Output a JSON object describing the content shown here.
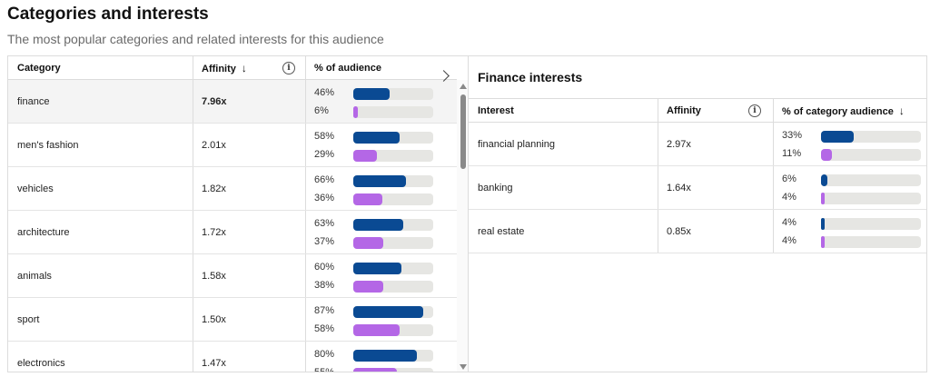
{
  "page": {
    "title": "Categories and interests",
    "subtitle": "The most popular categories and related interests for this audience"
  },
  "colors": {
    "primary_bar": "#0a4a93",
    "secondary_bar": "#b467e6",
    "track": "#e6e6e3"
  },
  "left_table": {
    "headers": {
      "category": "Category",
      "affinity": "Affinity",
      "affinity_sort_icon": "arrow-down-icon",
      "affinity_info_icon": "info-icon",
      "percent": "% of audience"
    },
    "rows": [
      {
        "category": "finance",
        "affinity": "7.96x",
        "p1_label": "46%",
        "p1": 46,
        "p2_label": "6%",
        "p2": 6,
        "selected": true
      },
      {
        "category": "men's fashion",
        "affinity": "2.01x",
        "p1_label": "58%",
        "p1": 58,
        "p2_label": "29%",
        "p2": 29
      },
      {
        "category": "vehicles",
        "affinity": "1.82x",
        "p1_label": "66%",
        "p1": 66,
        "p2_label": "36%",
        "p2": 36
      },
      {
        "category": "architecture",
        "affinity": "1.72x",
        "p1_label": "63%",
        "p1": 63,
        "p2_label": "37%",
        "p2": 37
      },
      {
        "category": "animals",
        "affinity": "1.58x",
        "p1_label": "60%",
        "p1": 60,
        "p2_label": "38%",
        "p2": 38
      },
      {
        "category": "sport",
        "affinity": "1.50x",
        "p1_label": "87%",
        "p1": 87,
        "p2_label": "58%",
        "p2": 58
      },
      {
        "category": "electronics",
        "affinity": "1.47x",
        "p1_label": "80%",
        "p1": 80,
        "p2_label": "55%",
        "p2": 55
      }
    ]
  },
  "right_panel": {
    "title": "Finance interests",
    "headers": {
      "interest": "Interest",
      "affinity": "Affinity",
      "affinity_info_icon": "info-icon",
      "percent": "% of category audience",
      "percent_sort_icon": "arrow-down-icon"
    },
    "rows": [
      {
        "interest": "financial planning",
        "affinity": "2.97x",
        "p1_label": "33%",
        "p1": 33,
        "p2_label": "11%",
        "p2": 11
      },
      {
        "interest": "banking",
        "affinity": "1.64x",
        "p1_label": "6%",
        "p1": 6,
        "p2_label": "4%",
        "p2": 4
      },
      {
        "interest": "real estate",
        "affinity": "0.85x",
        "p1_label": "4%",
        "p1": 4,
        "p2_label": "4%",
        "p2": 4
      }
    ]
  }
}
